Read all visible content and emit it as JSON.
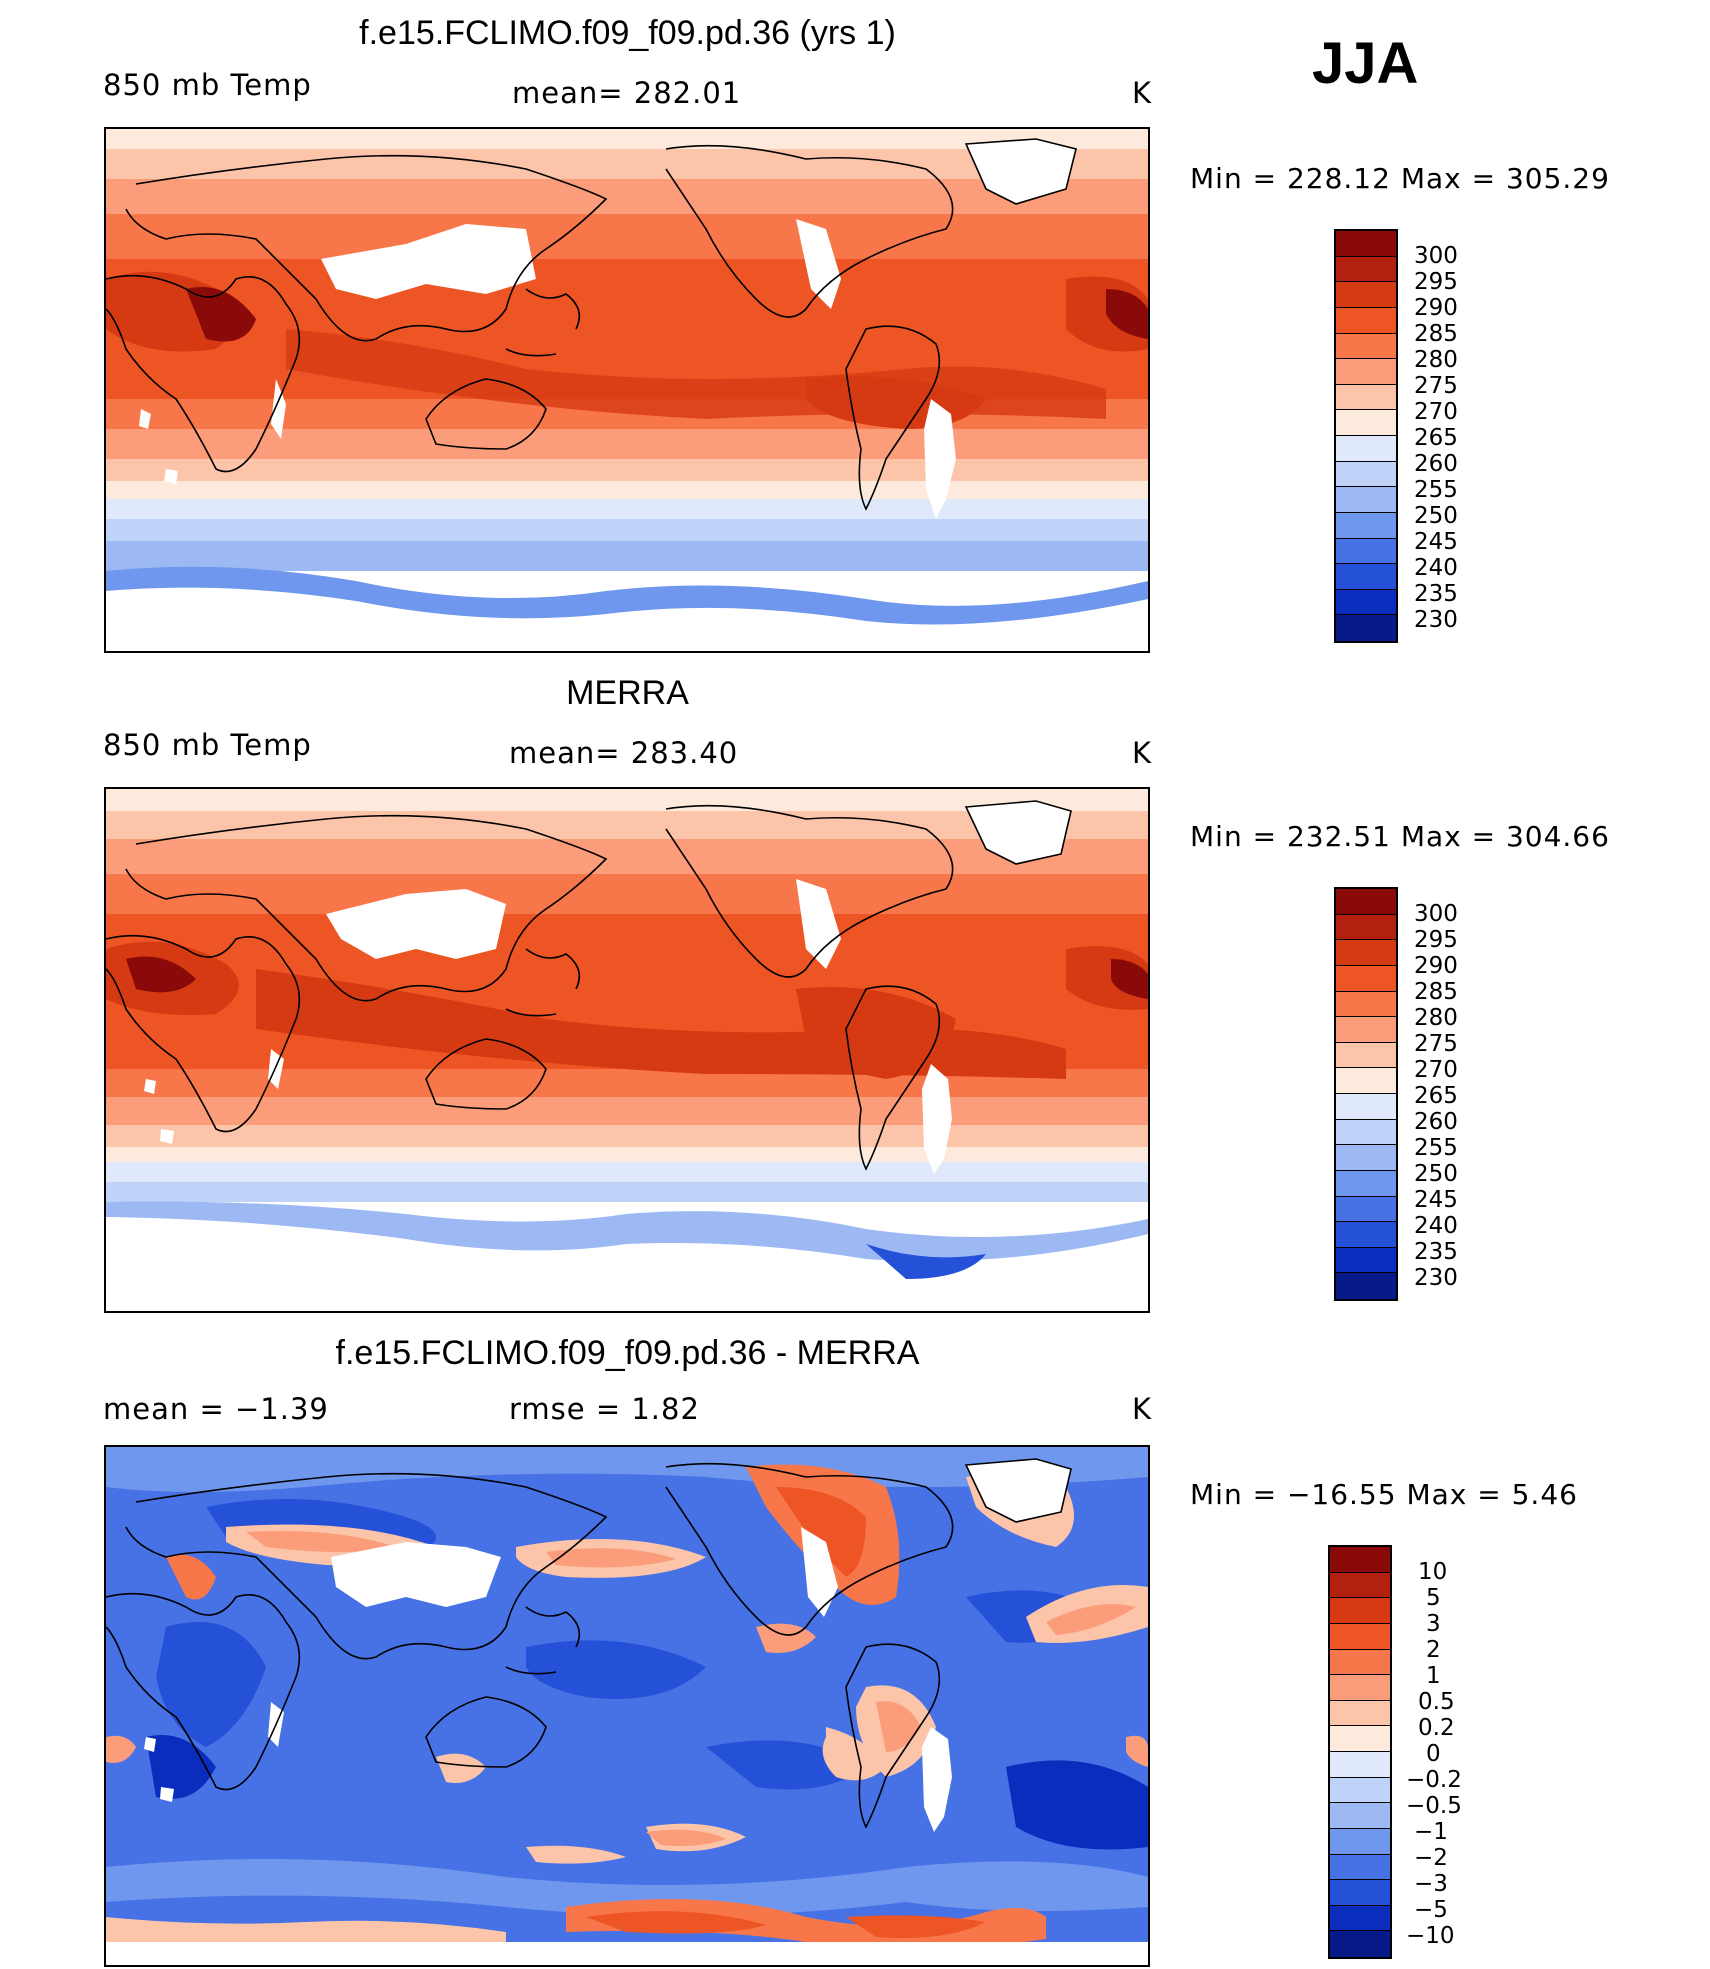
{
  "season": "JJA",
  "units": "K",
  "panels": [
    {
      "id": "model",
      "title": "f.e15.FCLIMO.f09_f09.pd.36 (yrs 1)",
      "variable": "850 mb Temp",
      "stat": "mean=  282.01",
      "units": "K",
      "minmax": "Min  =  228.12  Max  =  305.29",
      "colorbar": {
        "labels": [
          "300",
          "295",
          "290",
          "285",
          "280",
          "275",
          "270",
          "265",
          "260",
          "255",
          "250",
          "245",
          "240",
          "235",
          "230"
        ],
        "colors": [
          "#8a0a0a",
          "#b3200f",
          "#d63a12",
          "#ee5524",
          "#f8774a",
          "#fb9d7a",
          "#fcc4a8",
          "#feeadc",
          "#dfe9fb",
          "#bfd3f8",
          "#9db9f4",
          "#6f97ee",
          "#4672e6",
          "#2550d8",
          "#0a2dbd",
          "#061a8a"
        ]
      }
    },
    {
      "id": "obs",
      "title": "MERRA",
      "variable": "850 mb Temp",
      "stat": "mean=  283.40",
      "units": "K",
      "minmax": "Min  =  232.51  Max  =  304.66",
      "colorbar": {
        "labels": [
          "300",
          "295",
          "290",
          "285",
          "280",
          "275",
          "270",
          "265",
          "260",
          "255",
          "250",
          "245",
          "240",
          "235",
          "230"
        ],
        "colors": [
          "#8a0a0a",
          "#b3200f",
          "#d63a12",
          "#ee5524",
          "#f8774a",
          "#fb9d7a",
          "#fcc4a8",
          "#feeadc",
          "#dfe9fb",
          "#bfd3f8",
          "#9db9f4",
          "#6f97ee",
          "#4672e6",
          "#2550d8",
          "#0a2dbd",
          "#061a8a"
        ]
      }
    },
    {
      "id": "diff",
      "title": "f.e15.FCLIMO.f09_f09.pd.36 - MERRA",
      "variable": "mean  =    −1.39",
      "stat": "rmse  =     1.82",
      "units": "K",
      "minmax": "Min  =  −16.55  Max  =      5.46",
      "colorbar": {
        "labels": [
          "10",
          "5",
          "3",
          "2",
          "1",
          "0.5",
          "0.2",
          "0",
          "−0.2",
          "−0.5",
          "−1",
          "−2",
          "−3",
          "−5",
          "−10"
        ],
        "colors": [
          "#8a0a0a",
          "#b3200f",
          "#d63a12",
          "#ee5524",
          "#f8774a",
          "#fb9d7a",
          "#fcc4a8",
          "#feeadc",
          "#dfe9fb",
          "#bfd3f8",
          "#9db9f4",
          "#6f97ee",
          "#4672e6",
          "#2550d8",
          "#0a2dbd",
          "#061a8a"
        ]
      }
    }
  ]
}
